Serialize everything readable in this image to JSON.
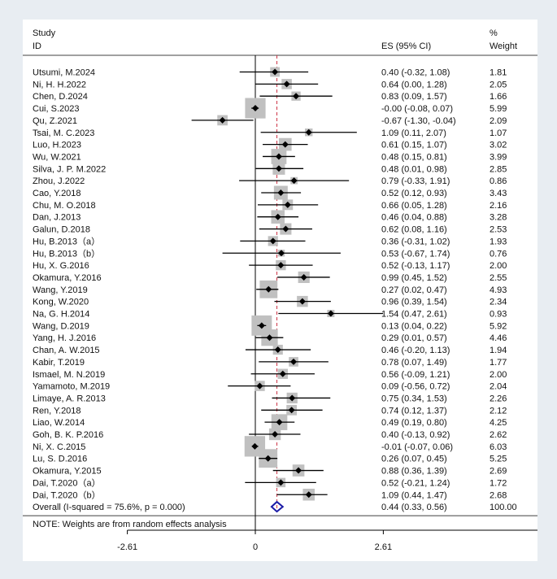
{
  "chart_data": {
    "type": "forest",
    "header": {
      "study_line1": "Study",
      "study_line2": "ID",
      "es_label": "ES (95% CI)",
      "weight_line1": "%",
      "weight_line2": "Weight"
    },
    "studies": [
      {
        "name": "Utsumi, M.2024",
        "es": 0.4,
        "lo": -0.32,
        "hi": 1.08,
        "weight": 1.81,
        "ci_text": "0.40 (-0.32, 1.08)",
        "weight_text": "1.81"
      },
      {
        "name": "Ni, H. H.2022",
        "es": 0.64,
        "lo": 0.0,
        "hi": 1.28,
        "weight": 2.05,
        "ci_text": "0.64 (0.00, 1.28)",
        "weight_text": "2.05"
      },
      {
        "name": "Chen, D.2024",
        "es": 0.83,
        "lo": 0.09,
        "hi": 1.57,
        "weight": 1.66,
        "ci_text": "0.83 (0.09, 1.57)",
        "weight_text": "1.66"
      },
      {
        "name": "Cui, S.2023",
        "es": -0.0,
        "lo": -0.08,
        "hi": 0.07,
        "weight": 5.99,
        "ci_text": "-0.00 (-0.08, 0.07)",
        "weight_text": "5.99"
      },
      {
        "name": "Qu, Z.2021",
        "es": -0.67,
        "lo": -1.3,
        "hi": -0.04,
        "weight": 2.09,
        "ci_text": "-0.67 (-1.30, -0.04)",
        "weight_text": "2.09"
      },
      {
        "name": "Tsai, M. C.2023",
        "es": 1.09,
        "lo": 0.11,
        "hi": 2.07,
        "weight": 1.07,
        "ci_text": "1.09 (0.11, 2.07)",
        "weight_text": "1.07"
      },
      {
        "name": "Luo, H.2023",
        "es": 0.61,
        "lo": 0.15,
        "hi": 1.07,
        "weight": 3.02,
        "ci_text": "0.61 (0.15, 1.07)",
        "weight_text": "3.02"
      },
      {
        "name": "Wu, W.2021",
        "es": 0.48,
        "lo": 0.15,
        "hi": 0.81,
        "weight": 3.99,
        "ci_text": "0.48 (0.15, 0.81)",
        "weight_text": "3.99"
      },
      {
        "name": "Silva, J. P. M.2022",
        "es": 0.48,
        "lo": 0.01,
        "hi": 0.98,
        "weight": 2.85,
        "ci_text": "0.48 (0.01, 0.98)",
        "weight_text": "2.85"
      },
      {
        "name": "Zhou, J.2022",
        "es": 0.79,
        "lo": -0.33,
        "hi": 1.91,
        "weight": 0.86,
        "ci_text": "0.79 (-0.33, 1.91)",
        "weight_text": "0.86"
      },
      {
        "name": "Cao, Y.2018",
        "es": 0.52,
        "lo": 0.12,
        "hi": 0.93,
        "weight": 3.43,
        "ci_text": "0.52 (0.12, 0.93)",
        "weight_text": "3.43"
      },
      {
        "name": "Chu, M. O.2018",
        "es": 0.66,
        "lo": 0.05,
        "hi": 1.28,
        "weight": 2.16,
        "ci_text": "0.66 (0.05, 1.28)",
        "weight_text": "2.16"
      },
      {
        "name": "Dan, J.2013",
        "es": 0.46,
        "lo": 0.04,
        "hi": 0.88,
        "weight": 3.28,
        "ci_text": "0.46 (0.04, 0.88)",
        "weight_text": "3.28"
      },
      {
        "name": "Galun, D.2018",
        "es": 0.62,
        "lo": 0.08,
        "hi": 1.16,
        "weight": 2.53,
        "ci_text": "0.62 (0.08, 1.16)",
        "weight_text": "2.53"
      },
      {
        "name": "Hu, B.2013（a）",
        "es": 0.36,
        "lo": -0.31,
        "hi": 1.02,
        "weight": 1.93,
        "ci_text": "0.36 (-0.31, 1.02)",
        "weight_text": "1.93"
      },
      {
        "name": "Hu, B.2013（b）",
        "es": 0.53,
        "lo": -0.67,
        "hi": 1.74,
        "weight": 0.76,
        "ci_text": "0.53 (-0.67, 1.74)",
        "weight_text": "0.76"
      },
      {
        "name": "Hu, X. G.2016",
        "es": 0.52,
        "lo": -0.13,
        "hi": 1.17,
        "weight": 2.0,
        "ci_text": "0.52 (-0.13, 1.17)",
        "weight_text": "2.00"
      },
      {
        "name": "Okamura, Y.2016",
        "es": 0.99,
        "lo": 0.45,
        "hi": 1.52,
        "weight": 2.55,
        "ci_text": "0.99 (0.45, 1.52)",
        "weight_text": "2.55"
      },
      {
        "name": "Wang, Y.2019",
        "es": 0.27,
        "lo": 0.02,
        "hi": 0.47,
        "weight": 4.93,
        "ci_text": "0.27 (0.02, 0.47)",
        "weight_text": "4.93"
      },
      {
        "name": "Kong, W.2020",
        "es": 0.96,
        "lo": 0.39,
        "hi": 1.54,
        "weight": 2.34,
        "ci_text": "0.96 (0.39, 1.54)",
        "weight_text": "2.34"
      },
      {
        "name": "Na, G. H.2014",
        "es": 1.54,
        "lo": 0.47,
        "hi": 2.61,
        "weight": 0.93,
        "ci_text": "1.54 (0.47, 2.61)",
        "weight_text": "0.93"
      },
      {
        "name": "Wang, D.2019",
        "es": 0.13,
        "lo": 0.04,
        "hi": 0.22,
        "weight": 5.92,
        "ci_text": "0.13 (0.04, 0.22)",
        "weight_text": "5.92"
      },
      {
        "name": "Yang, H. J.2016",
        "es": 0.29,
        "lo": 0.01,
        "hi": 0.57,
        "weight": 4.46,
        "ci_text": "0.29 (0.01, 0.57)",
        "weight_text": "4.46"
      },
      {
        "name": "Chan, A. W.2015",
        "es": 0.46,
        "lo": -0.2,
        "hi": 1.13,
        "weight": 1.94,
        "ci_text": "0.46 (-0.20, 1.13)",
        "weight_text": "1.94"
      },
      {
        "name": "Kabir, T.2019",
        "es": 0.78,
        "lo": 0.07,
        "hi": 1.49,
        "weight": 1.77,
        "ci_text": "0.78 (0.07, 1.49)",
        "weight_text": "1.77"
      },
      {
        "name": "Ismael, M. N.2019",
        "es": 0.56,
        "lo": -0.09,
        "hi": 1.21,
        "weight": 2.0,
        "ci_text": "0.56 (-0.09, 1.21)",
        "weight_text": "2.00"
      },
      {
        "name": "Yamamoto, M.2019",
        "es": 0.09,
        "lo": -0.56,
        "hi": 0.72,
        "weight": 2.04,
        "ci_text": "0.09 (-0.56, 0.72)",
        "weight_text": "2.04"
      },
      {
        "name": "Limaye, A. R.2013",
        "es": 0.75,
        "lo": 0.34,
        "hi": 1.53,
        "weight": 2.26,
        "ci_text": "0.75 (0.34, 1.53)",
        "weight_text": "2.26"
      },
      {
        "name": "Ren, Y.2018",
        "es": 0.74,
        "lo": 0.12,
        "hi": 1.37,
        "weight": 2.12,
        "ci_text": "0.74 (0.12, 1.37)",
        "weight_text": "2.12"
      },
      {
        "name": "Liao, W.2014",
        "es": 0.49,
        "lo": 0.19,
        "hi": 0.8,
        "weight": 4.25,
        "ci_text": "0.49 (0.19, 0.80)",
        "weight_text": "4.25"
      },
      {
        "name": "Goh, B. K. P.2016",
        "es": 0.4,
        "lo": -0.13,
        "hi": 0.92,
        "weight": 2.62,
        "ci_text": "0.40 (-0.13, 0.92)",
        "weight_text": "2.62"
      },
      {
        "name": "Ni, X. C.2015",
        "es": -0.01,
        "lo": -0.07,
        "hi": 0.06,
        "weight": 6.03,
        "ci_text": "-0.01 (-0.07, 0.06)",
        "weight_text": "6.03"
      },
      {
        "name": "Lu, S. D.2016",
        "es": 0.26,
        "lo": 0.07,
        "hi": 0.45,
        "weight": 5.25,
        "ci_text": "0.26 (0.07, 0.45)",
        "weight_text": "5.25"
      },
      {
        "name": "Okamura, Y.2015",
        "es": 0.88,
        "lo": 0.36,
        "hi": 1.39,
        "weight": 2.69,
        "ci_text": "0.88 (0.36, 1.39)",
        "weight_text": "2.69"
      },
      {
        "name": "Dai, T.2020（a）",
        "es": 0.52,
        "lo": -0.21,
        "hi": 1.24,
        "weight": 1.72,
        "ci_text": "0.52 (-0.21, 1.24)",
        "weight_text": "1.72"
      },
      {
        "name": "Dai, T.2020（b）",
        "es": 1.09,
        "lo": 0.44,
        "hi": 1.47,
        "weight": 2.68,
        "ci_text": "1.09 (0.44, 1.47)",
        "weight_text": "2.68"
      }
    ],
    "overall": {
      "label": "Overall  (I-squared = 75.6%, p = 0.000)",
      "es": 0.44,
      "lo": 0.33,
      "hi": 0.56,
      "ci_text": "0.44 (0.33, 0.56)",
      "weight_text": "100.00"
    },
    "note": "NOTE: Weights are from random effects analysis",
    "x_axis": {
      "range": [
        -2.61,
        2.61
      ],
      "ticks": [
        -2.61,
        0,
        2.61
      ],
      "tick_labels": [
        "-2.61",
        "0",
        "2.61"
      ]
    },
    "colors": {
      "box": "#c0c0c0",
      "diamond_point": "#000000",
      "overall_diamond": "#1a1aa6",
      "dashed_line": "#cc3344",
      "line": "#000000"
    }
  }
}
